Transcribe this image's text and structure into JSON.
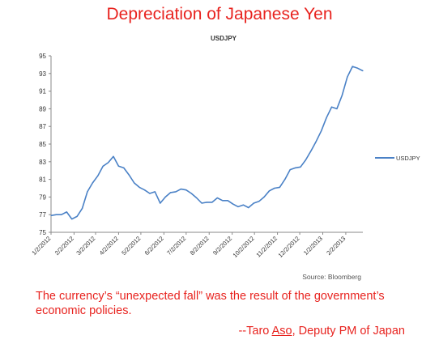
{
  "slide": {
    "title": "Depreciation of Japanese Yen",
    "caption": "The currency’s “unexpected fall” was the result of the government’s economic policies.",
    "attribution_prefix": "--Taro ",
    "attribution_name": "Aso",
    "attribution_suffix": ", Deputy PM of Japan",
    "accent_color": "#e8231f"
  },
  "chart_data": {
    "type": "line",
    "title": "USDJPY",
    "xlabel": "",
    "ylabel": "",
    "source": "Source: Bloomberg",
    "ylim": [
      75,
      95
    ],
    "y_ticks": [
      75,
      77,
      79,
      81,
      83,
      85,
      87,
      89,
      91,
      93,
      95
    ],
    "x_tick_labels": [
      "1/2/2012",
      "2/2/2012",
      "3/2/2012",
      "4/2/2012",
      "5/2/2012",
      "6/2/2012",
      "7/2/2012",
      "8/2/2012",
      "9/2/2012",
      "10/2/2012",
      "11/2/2012",
      "12/2/2012",
      "1/2/2013",
      "2/2/2013"
    ],
    "legend_position": "right",
    "grid": false,
    "series": [
      {
        "name": "USDJPY",
        "color": "#4a81c6",
        "x": [
          "2012-01-02",
          "2012-01-09",
          "2012-01-16",
          "2012-01-23",
          "2012-01-30",
          "2012-02-06",
          "2012-02-13",
          "2012-02-20",
          "2012-02-27",
          "2012-03-05",
          "2012-03-12",
          "2012-03-19",
          "2012-03-26",
          "2012-04-02",
          "2012-04-09",
          "2012-04-16",
          "2012-04-23",
          "2012-04-30",
          "2012-05-07",
          "2012-05-14",
          "2012-05-21",
          "2012-05-28",
          "2012-06-04",
          "2012-06-11",
          "2012-06-18",
          "2012-06-25",
          "2012-07-02",
          "2012-07-09",
          "2012-07-16",
          "2012-07-23",
          "2012-07-30",
          "2012-08-06",
          "2012-08-13",
          "2012-08-20",
          "2012-08-27",
          "2012-09-03",
          "2012-09-10",
          "2012-09-17",
          "2012-09-24",
          "2012-10-01",
          "2012-10-08",
          "2012-10-15",
          "2012-10-22",
          "2012-10-29",
          "2012-11-05",
          "2012-11-12",
          "2012-11-19",
          "2012-11-26",
          "2012-12-03",
          "2012-12-10",
          "2012-12-17",
          "2012-12-24",
          "2012-12-31",
          "2013-01-07",
          "2013-01-14",
          "2013-01-21",
          "2013-01-28",
          "2013-02-04",
          "2013-02-11",
          "2013-02-18",
          "2013-02-25"
        ],
        "values": [
          76.9,
          77.0,
          77.0,
          77.3,
          76.5,
          76.8,
          77.7,
          79.6,
          80.6,
          81.4,
          82.5,
          82.9,
          83.6,
          82.5,
          82.3,
          81.5,
          80.6,
          80.1,
          79.8,
          79.4,
          79.6,
          78.3,
          79.0,
          79.5,
          79.6,
          79.9,
          79.8,
          79.4,
          78.9,
          78.3,
          78.4,
          78.4,
          78.9,
          78.6,
          78.6,
          78.2,
          77.9,
          78.1,
          77.8,
          78.3,
          78.5,
          79.0,
          79.7,
          80.0,
          80.1,
          81.0,
          82.1,
          82.3,
          82.4,
          83.2,
          84.2,
          85.3,
          86.5,
          88.0,
          89.2,
          89.0,
          90.5,
          92.6,
          93.8,
          93.6,
          93.3
        ]
      }
    ]
  }
}
